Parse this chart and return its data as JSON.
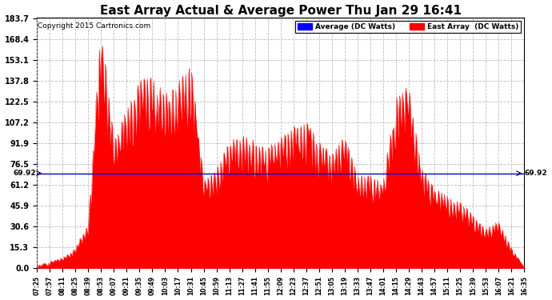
{
  "title": "East Array Actual & Average Power Thu Jan 29 16:41",
  "copyright": "Copyright 2015 Cartronics.com",
  "legend_avg": "Average (DC Watts)",
  "legend_east": "East Array  (DC Watts)",
  "avg_line_value": 69.92,
  "avg_label": "69.92",
  "ymax": 183.7,
  "ymin": 0.0,
  "yticks": [
    0.0,
    15.3,
    30.6,
    45.9,
    61.2,
    76.5,
    91.9,
    107.2,
    122.5,
    137.8,
    153.1,
    168.4,
    183.7
  ],
  "background_color": "#ffffff",
  "fill_color": "#ff0000",
  "avg_line_color": "#0000cd",
  "grid_color": "#bbbbbb",
  "title_fontsize": 11,
  "copyright_fontsize": 7,
  "xtick_labels": [
    "07:25",
    "07:57",
    "08:11",
    "08:25",
    "08:39",
    "08:53",
    "09:07",
    "09:21",
    "09:35",
    "09:49",
    "10:03",
    "10:17",
    "10:31",
    "10:45",
    "10:59",
    "11:13",
    "11:27",
    "11:41",
    "11:55",
    "12:09",
    "12:23",
    "12:37",
    "12:51",
    "13:05",
    "13:19",
    "13:33",
    "13:47",
    "14:01",
    "14:15",
    "14:29",
    "14:43",
    "14:57",
    "15:11",
    "15:25",
    "15:39",
    "15:53",
    "16:07",
    "16:21",
    "16:35"
  ]
}
